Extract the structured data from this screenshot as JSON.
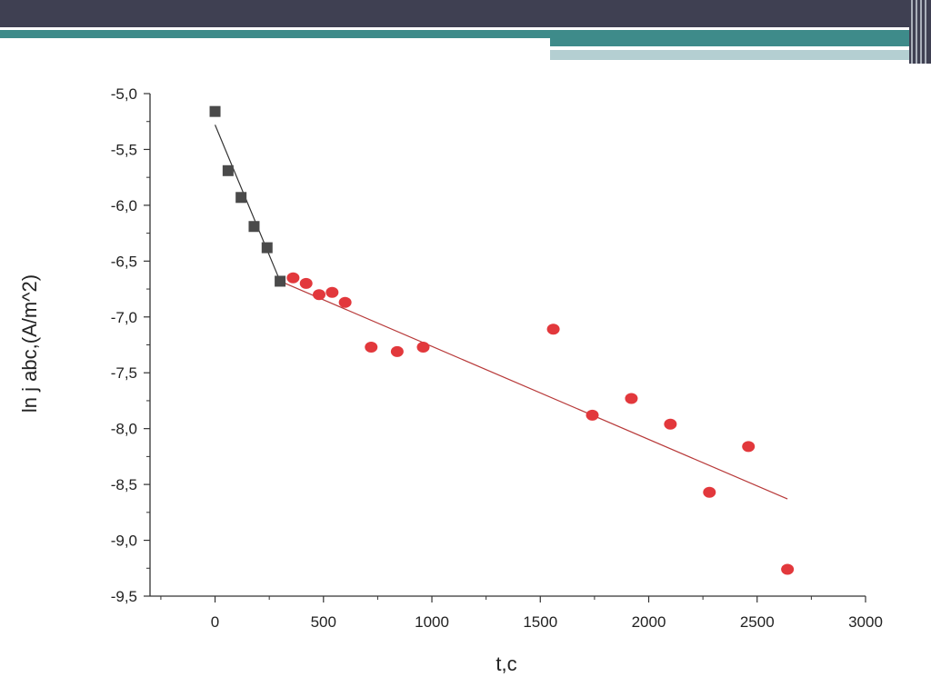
{
  "colors": {
    "header_dark": "#3f4052",
    "header_teal": "#3e8b8a",
    "header_light": "#b4cfd2",
    "series1": "#4a4a4a",
    "series2": "#e2383c",
    "fit1": "#333333",
    "fit2": "#b83a3a"
  },
  "chart_data": {
    "type": "scatter",
    "title": "",
    "xlabel": "t,c",
    "ylabel": "ln j abc,(A/m^2)",
    "xlim": [
      -300,
      3000
    ],
    "ylim": [
      -9.5,
      -5.0
    ],
    "grid": false,
    "legend": "none",
    "x_ticks": [
      0,
      500,
      1000,
      1500,
      2000,
      2500,
      3000
    ],
    "x_tick_labels": [
      "0",
      "500",
      "1000",
      "1500",
      "2000",
      "2500",
      "3000"
    ],
    "y_ticks": [
      -5.0,
      -5.5,
      -6.0,
      -6.5,
      -7.0,
      -7.5,
      -8.0,
      -8.5,
      -9.0,
      -9.5
    ],
    "y_tick_labels": [
      "-5,0",
      "-5,5",
      "-6,0",
      "-6,5",
      "-7,0",
      "-7,5",
      "-8,0",
      "-8,5",
      "-9,0",
      "-9,5"
    ],
    "series": [
      {
        "marker": "square",
        "color": "#4a4a4a",
        "points": [
          [
            0,
            -5.16
          ],
          [
            60,
            -5.69
          ],
          [
            120,
            -5.93
          ],
          [
            180,
            -6.19
          ],
          [
            240,
            -6.38
          ],
          [
            300,
            -6.68
          ]
        ]
      },
      {
        "marker": "circle",
        "color": "#e2383c",
        "points": [
          [
            360,
            -6.65
          ],
          [
            420,
            -6.7
          ],
          [
            480,
            -6.8
          ],
          [
            540,
            -6.78
          ],
          [
            600,
            -6.87
          ],
          [
            720,
            -7.27
          ],
          [
            840,
            -7.31
          ],
          [
            960,
            -7.27
          ],
          [
            1560,
            -7.11
          ],
          [
            1740,
            -7.88
          ],
          [
            1920,
            -7.73
          ],
          [
            2100,
            -7.96
          ],
          [
            2280,
            -8.57
          ],
          [
            2460,
            -8.16
          ],
          [
            2640,
            -9.26
          ]
        ]
      }
    ],
    "fit_lines": [
      {
        "color": "#333333",
        "from": [
          0,
          -5.28
        ],
        "to": [
          300,
          -6.68
        ]
      },
      {
        "color": "#b83a3a",
        "from": [
          300,
          -6.68
        ],
        "to": [
          2640,
          -8.63
        ]
      }
    ]
  }
}
